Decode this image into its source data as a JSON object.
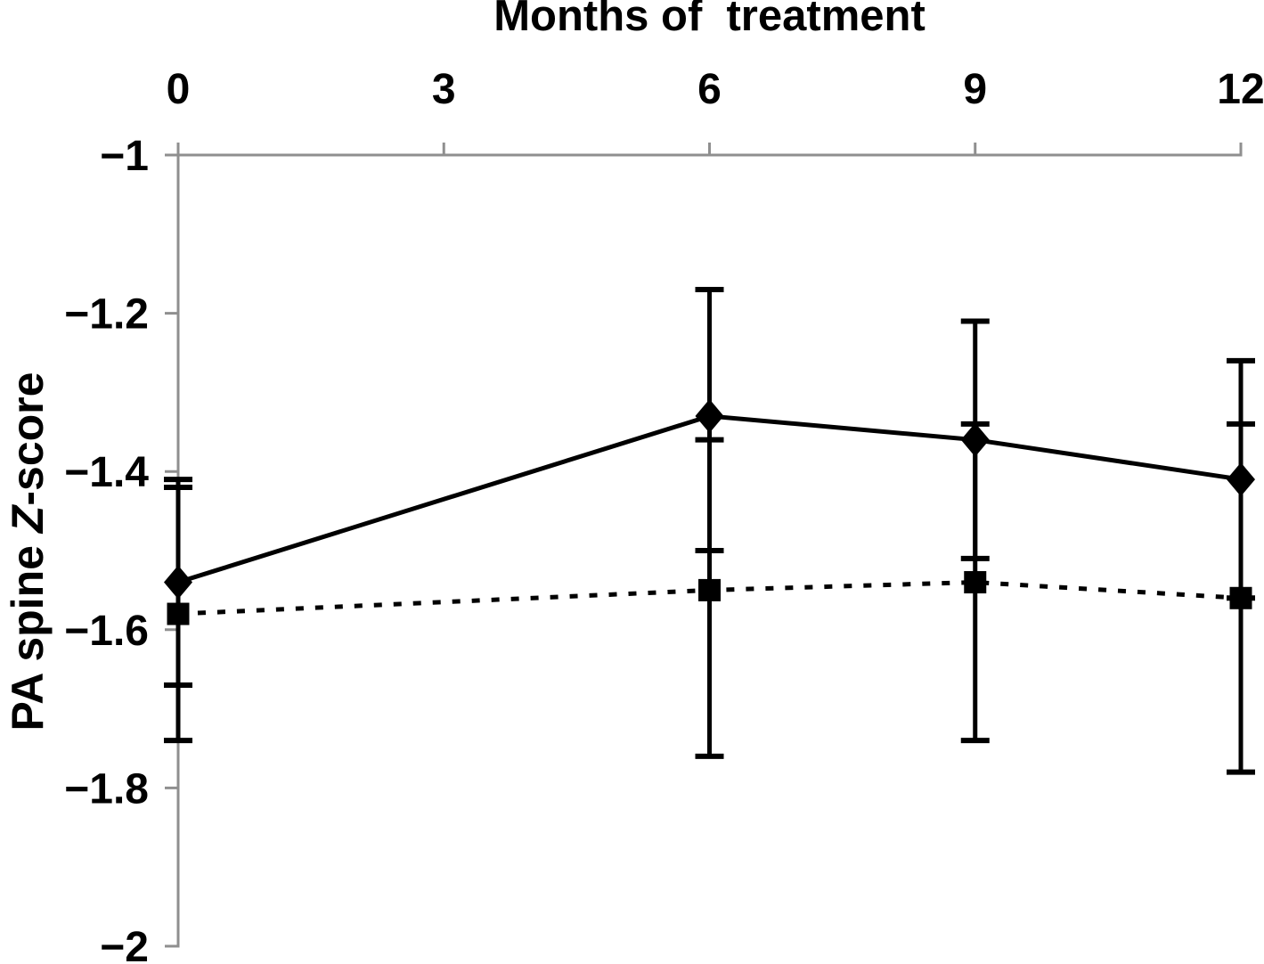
{
  "figure": {
    "title": "Months of  treatment",
    "ylabel_parts": [
      "PA spine ",
      "Z",
      "-score"
    ]
  },
  "chart_data": {
    "type": "line",
    "title": "Months of  treatment",
    "xlabel": "Months of treatment",
    "ylabel": "PA spine Z-score",
    "grid": false,
    "legend": "none",
    "x_axis": {
      "position": "top",
      "ticks": [
        0,
        3,
        6,
        9,
        12
      ],
      "range": [
        0,
        12
      ]
    },
    "y_axis": {
      "position": "left",
      "ticks": [
        -1,
        -1.2,
        -1.4,
        -1.6,
        -1.8,
        -2
      ],
      "range": [
        -1,
        -2
      ]
    },
    "x": [
      0,
      6,
      9,
      12
    ],
    "series": [
      {
        "name": "diamond-solid",
        "marker": "diamond",
        "line": "solid",
        "values": [
          -1.54,
          -1.33,
          -1.36,
          -1.41
        ],
        "err_hi": [
          -1.41,
          -1.17,
          -1.21,
          -1.26
        ],
        "err_lo": [
          -1.67,
          -1.5,
          -1.51,
          -1.56
        ]
      },
      {
        "name": "square-dotted",
        "marker": "square",
        "line": "dotted",
        "values": [
          -1.58,
          -1.55,
          -1.54,
          -1.56
        ],
        "err_hi": [
          -1.42,
          -1.36,
          -1.34,
          -1.34
        ],
        "err_lo": [
          -1.74,
          -1.76,
          -1.74,
          -1.78
        ]
      }
    ],
    "colors": {
      "axis": "#8f8f8f",
      "data": "#000000",
      "text": "#000000"
    }
  }
}
